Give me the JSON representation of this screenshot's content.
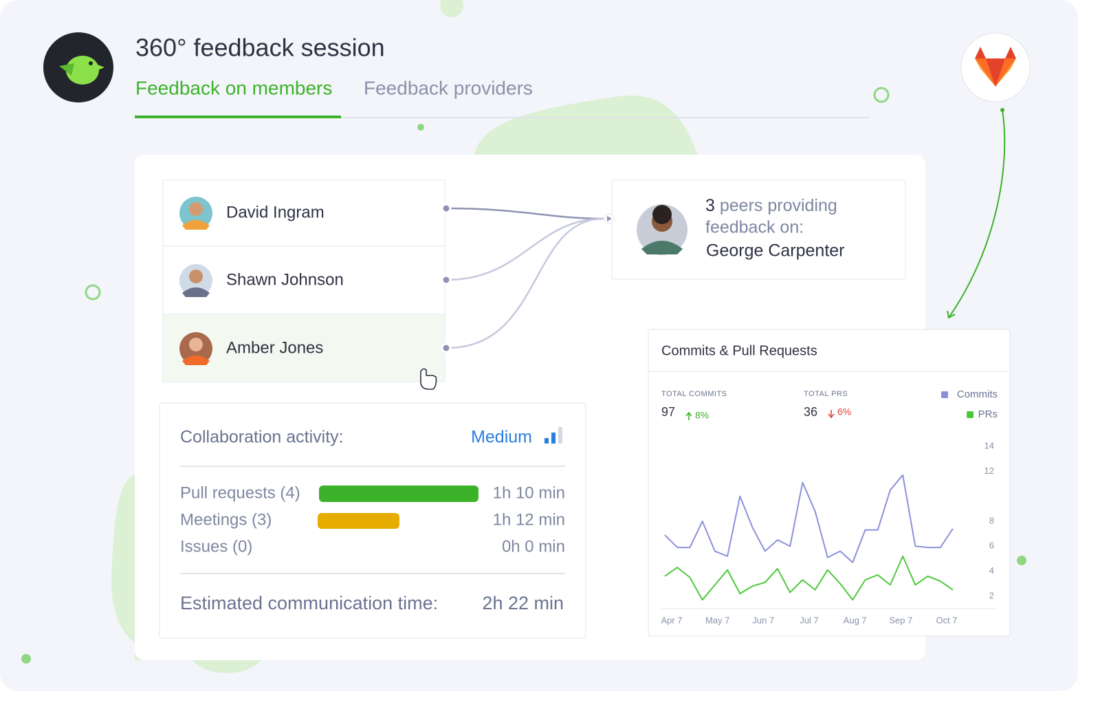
{
  "header": {
    "title": "360° feedback session",
    "tabs": [
      "Feedback on members",
      "Feedback providers"
    ]
  },
  "members": [
    "David Ingram",
    "Shawn Johnson",
    "Amber Jones"
  ],
  "target": {
    "peers": "3",
    "label_lines": [
      "peers providing",
      "feedback on:"
    ],
    "name": "George Carpenter"
  },
  "activity": {
    "label": "Collaboration activity:",
    "level": "Medium",
    "rows": [
      {
        "label": "Pull requests (4)",
        "time": "1h 10 min"
      },
      {
        "label": "Meetings (3)",
        "time": "1h 12 min"
      },
      {
        "label": "Issues (0)",
        "time": "0h 0 min"
      }
    ],
    "total_label": "Estimated communication time:",
    "total": "2h 22 min"
  },
  "chart_data": {
    "type": "line",
    "title": "Commits & Pull Requests",
    "stats": [
      {
        "label": "TOTAL COMMITS",
        "value": "97",
        "change": "8%",
        "direction": "up"
      },
      {
        "label": "TOTAL PRS",
        "value": "36",
        "change": "6%",
        "direction": "down"
      }
    ],
    "x_labels": [
      "Apr 7",
      "May 7",
      "Jun 7",
      "Jul 7",
      "Aug 7",
      "Sep 7",
      "Oct 7"
    ],
    "series": [
      {
        "name": "Commits",
        "color": "#8b90da",
        "values": [
          6.9,
          5.9,
          5.9,
          8.0,
          5.6,
          5.2,
          10.0,
          7.5,
          5.6,
          6.5,
          6.0,
          11.1,
          8.8,
          5.1,
          5.6,
          4.7,
          7.3,
          7.3,
          10.5,
          11.7,
          6.0,
          5.9,
          5.9,
          7.4
        ]
      },
      {
        "name": "PRs",
        "color": "#4cc93a",
        "values": [
          3.6,
          4.3,
          3.5,
          1.7,
          2.9,
          4.1,
          2.2,
          2.8,
          3.1,
          4.2,
          2.3,
          3.3,
          2.5,
          4.1,
          3.0,
          1.7,
          3.3,
          3.7,
          2.9,
          5.2,
          2.9,
          3.6,
          3.2,
          2.5
        ]
      }
    ],
    "ylim": [
      1,
      14.5
    ],
    "yticks": [
      2,
      4,
      6,
      8,
      12,
      14
    ]
  }
}
